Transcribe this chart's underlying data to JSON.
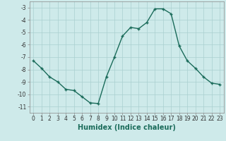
{
  "x": [
    0,
    1,
    2,
    3,
    4,
    5,
    6,
    7,
    8,
    9,
    10,
    11,
    12,
    13,
    14,
    15,
    16,
    17,
    18,
    19,
    20,
    21,
    22,
    23
  ],
  "y": [
    -7.3,
    -7.9,
    -8.6,
    -9.0,
    -9.6,
    -9.7,
    -10.2,
    -10.7,
    -10.75,
    -8.6,
    -7.0,
    -5.3,
    -4.6,
    -4.7,
    -4.2,
    -3.1,
    -3.1,
    -3.5,
    -6.1,
    -7.3,
    -7.9,
    -8.6,
    -9.1,
    -9.2
  ],
  "line_color": "#1a6b5a",
  "marker": "+",
  "marker_size": 3.5,
  "bg_color": "#ceeaea",
  "grid_color": "#aacfcf",
  "xlabel": "Humidex (Indice chaleur)",
  "ylim": [
    -11.5,
    -2.5
  ],
  "xlim": [
    -0.5,
    23.5
  ],
  "yticks": [
    -11,
    -10,
    -9,
    -8,
    -7,
    -6,
    -5,
    -4,
    -3
  ],
  "xticks": [
    0,
    1,
    2,
    3,
    4,
    5,
    6,
    7,
    8,
    9,
    10,
    11,
    12,
    13,
    14,
    15,
    16,
    17,
    18,
    19,
    20,
    21,
    22,
    23
  ],
  "tick_fontsize": 5.5,
  "label_fontsize": 7,
  "line_width": 1.0,
  "marker_color": "#1a6b5a"
}
